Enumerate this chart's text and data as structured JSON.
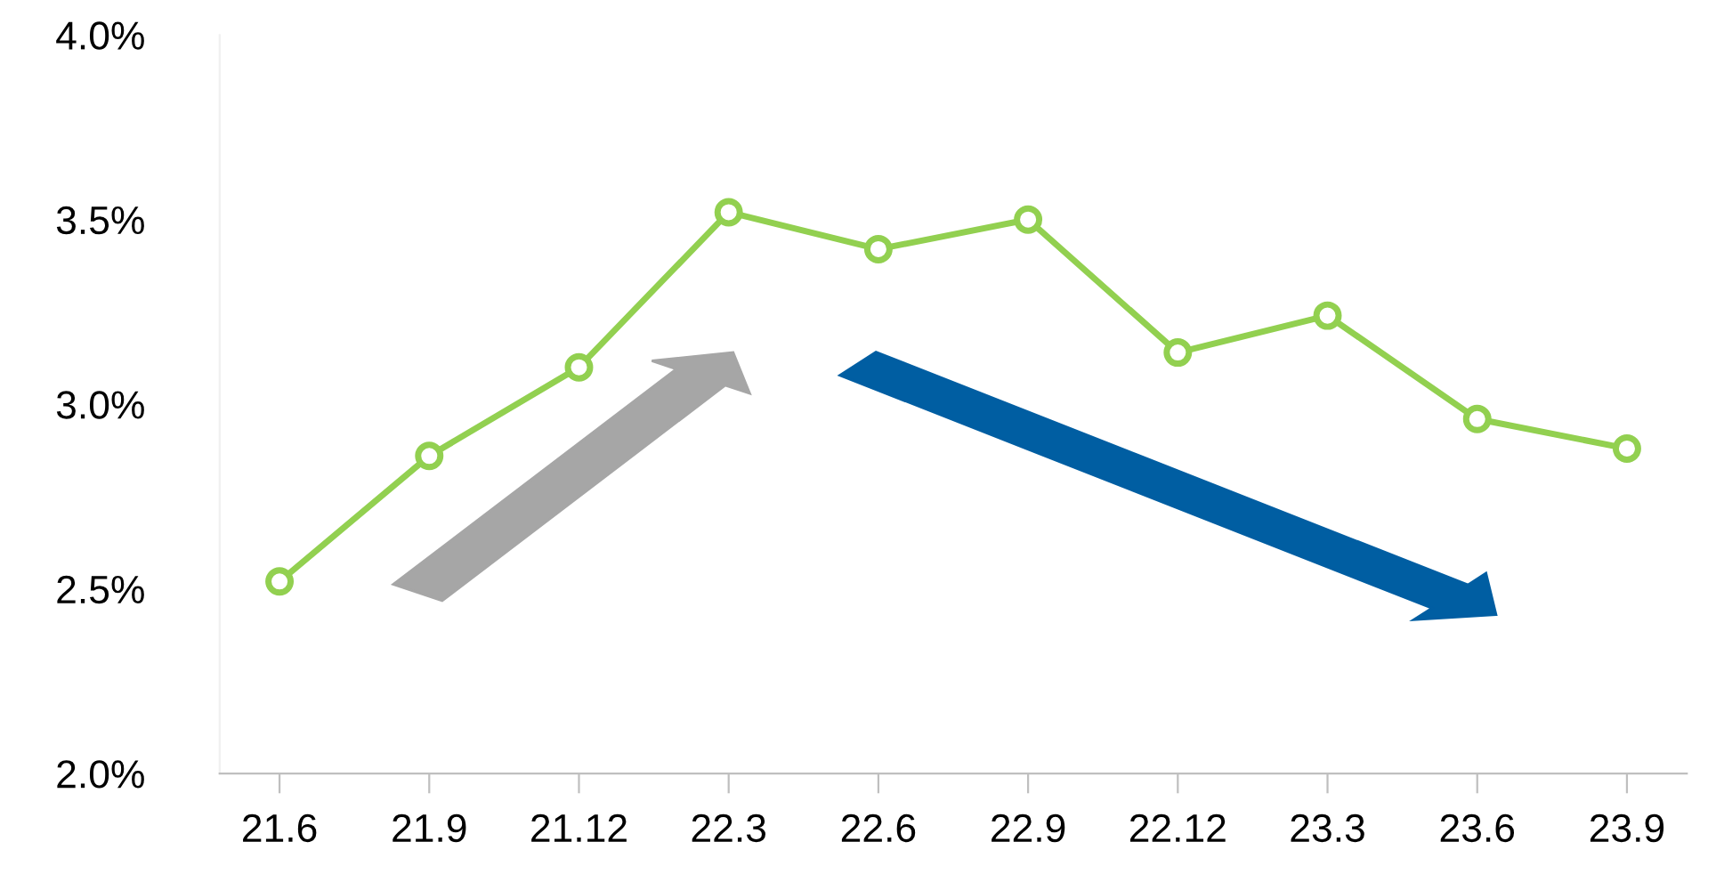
{
  "chart_data": {
    "type": "line",
    "categories": [
      "21.6",
      "21.9",
      "21.12",
      "22.3",
      "22.6",
      "22.9",
      "22.12",
      "23.3",
      "23.6",
      "23.9"
    ],
    "series": [
      {
        "color": "#92d050",
        "values": [
          2.52,
          2.86,
          3.1,
          3.52,
          3.42,
          3.5,
          3.14,
          3.24,
          2.96,
          2.88
        ]
      }
    ],
    "ylim": [
      2.0,
      4.0
    ],
    "yticks": [
      {
        "value": 2.0,
        "label": "2.0%"
      },
      {
        "value": 2.5,
        "label": "2.5%"
      },
      {
        "value": 3.0,
        "label": "3.0%"
      },
      {
        "value": 3.5,
        "label": "3.5%"
      },
      {
        "value": 4.0,
        "label": "4.0%"
      }
    ],
    "marker": "circle",
    "line_style": "solid",
    "grid": false,
    "legend": false
  }
}
